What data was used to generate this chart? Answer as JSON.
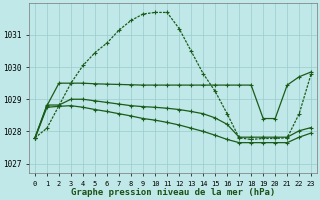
{
  "bg_color": "#c0e8e8",
  "grid_color": "#99cccc",
  "line_dark": "#1a5c1a",
  "xlabel": "Graphe pression niveau de la mer (hPa)",
  "ylim": [
    1026.7,
    1032.0
  ],
  "yticks": [
    1027,
    1028,
    1029,
    1030,
    1031
  ],
  "xticks": [
    0,
    1,
    2,
    3,
    4,
    5,
    6,
    7,
    8,
    9,
    10,
    11,
    12,
    13,
    14,
    15,
    16,
    17,
    18,
    19,
    20,
    21,
    22,
    23
  ],
  "series_dotted": [
    1027.8,
    1028.1,
    1028.8,
    1029.5,
    1030.05,
    1030.45,
    1030.75,
    1031.15,
    1031.45,
    1031.65,
    1031.7,
    1031.7,
    1031.2,
    1030.5,
    1029.8,
    1029.25,
    1028.55,
    1027.8,
    1027.75,
    1027.78,
    1027.78,
    1027.8,
    1028.55,
    1029.8
  ],
  "series_flat_high": [
    1027.8,
    1028.8,
    1029.5,
    1029.5,
    1029.5,
    1029.48,
    1029.47,
    1029.46,
    1029.45,
    1029.44,
    1029.44,
    1029.44,
    1029.44,
    1029.44,
    1029.44,
    1029.44,
    1029.44,
    1029.44,
    1029.44,
    1028.4,
    1028.4,
    1029.44,
    1029.7,
    1029.85
  ],
  "series_mid": [
    1027.8,
    1028.82,
    1028.82,
    1029.0,
    1029.0,
    1028.95,
    1028.9,
    1028.85,
    1028.8,
    1028.77,
    1028.75,
    1028.72,
    1028.68,
    1028.62,
    1028.55,
    1028.42,
    1028.22,
    1027.82,
    1027.82,
    1027.82,
    1027.82,
    1027.82,
    1028.02,
    1028.12
  ],
  "series_low": [
    1027.78,
    1028.75,
    1028.78,
    1028.8,
    1028.75,
    1028.68,
    1028.62,
    1028.55,
    1028.48,
    1028.4,
    1028.35,
    1028.28,
    1028.2,
    1028.1,
    1028.0,
    1027.88,
    1027.75,
    1027.65,
    1027.65,
    1027.65,
    1027.65,
    1027.65,
    1027.82,
    1027.95
  ]
}
